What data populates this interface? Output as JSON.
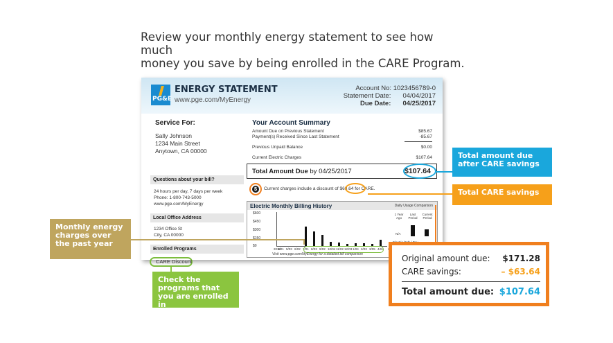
{
  "intro": {
    "line1": "Review your monthly energy statement to see how much",
    "line2": "money you save by being enrolled in the CARE Program."
  },
  "statement": {
    "logo_text": "PG&E",
    "title": "ENERGY STATEMENT",
    "url": "www.pge.com/MyEnergy",
    "account_no_label": "Account No:",
    "account_no": "1023456789-0",
    "statement_date_label": "Statement Date:",
    "statement_date": "04/04/2017",
    "due_date_label": "Due Date:",
    "due_date": "04/25/2017",
    "service_for_label": "Service For:",
    "customer_name": "Sally Johnson",
    "customer_street": "1234 Main Street",
    "customer_city": "Anytown, CA 00000",
    "questions_label": "Questions about your bill?",
    "questions_line1": "24 hours per day, 7 days per week",
    "questions_line2": "Phone: 1-800-743-5000",
    "questions_line3": "www.pge.com/MyEnergy",
    "office_label": "Local Office Address",
    "office_line1": "1234 Office St",
    "office_line2": "City, CA 00000",
    "enrolled_label": "Enrolled Programs",
    "enrolled_program": "CARE Discount",
    "summary_title": "Your Account Summary",
    "summary_rows": [
      {
        "label": "Amount Due on Previous Statement",
        "value": "$85.67"
      },
      {
        "label": "Payment(s) Received Since Last Statement",
        "value": "-85.67"
      },
      {
        "label": "Previous Unpaid Balance",
        "value": "$0.00"
      },
      {
        "label": "Current Electric Charges",
        "value": "$107.64"
      }
    ],
    "total_due_label": "Total Amount Due",
    "total_due_by": "by 04/25/2017",
    "total_due_value": "$107.64",
    "discount_text_pre": "Current charges include a discount of",
    "discount_amount": "$63.64",
    "discount_text_post": "for CARE.",
    "chart_title": "Electric Monthly Billing History",
    "daily_title": "Daily Usage Comparison",
    "chart_footer": "Visit www.pge.com/MyEnergy for a detailed bill comparison",
    "daily_cols": [
      "1 Year Ago",
      "Last Period",
      "Current Period"
    ],
    "daily_na": "N/A",
    "daily_footer": "Electric kWh / Day"
  },
  "chart_data": {
    "type": "bar",
    "title": "Electric Monthly Billing History",
    "ylabel": "",
    "ylim": [
      0,
      600
    ],
    "yticks": [
      "$600",
      "$450",
      "$300",
      "$150",
      "$0"
    ],
    "year_labels": [
      "2016",
      "2017"
    ],
    "categories": [
      "4/01",
      "5/03",
      "6/02",
      "7/01",
      "8/03",
      "9/02",
      "10/04",
      "11/02",
      "12/03",
      "1/04",
      "2/03",
      "3/05",
      "4/04"
    ],
    "values": [
      0,
      0,
      0,
      340,
      250,
      190,
      70,
      60,
      40,
      45,
      50,
      30,
      108
    ]
  },
  "callouts": {
    "total_due_after": "Total amount due after CARE savings",
    "total_savings": "Total CARE savings",
    "monthly_charges": "Monthly energy charges over the past year",
    "programs": "Check the programs that you are enrolled in"
  },
  "calc": {
    "original_label": "Original amount due:",
    "original_value": "$171.28",
    "savings_label": "CARE savings:",
    "savings_value": "– $63.64",
    "total_label": "Total amount due:",
    "total_value": "$107.64"
  },
  "colors": {
    "blue": "#1aa7dc",
    "orange": "#f6a01a",
    "dark_orange": "#f07f1e",
    "tan": "#bfa55e",
    "green": "#8bc53f"
  }
}
